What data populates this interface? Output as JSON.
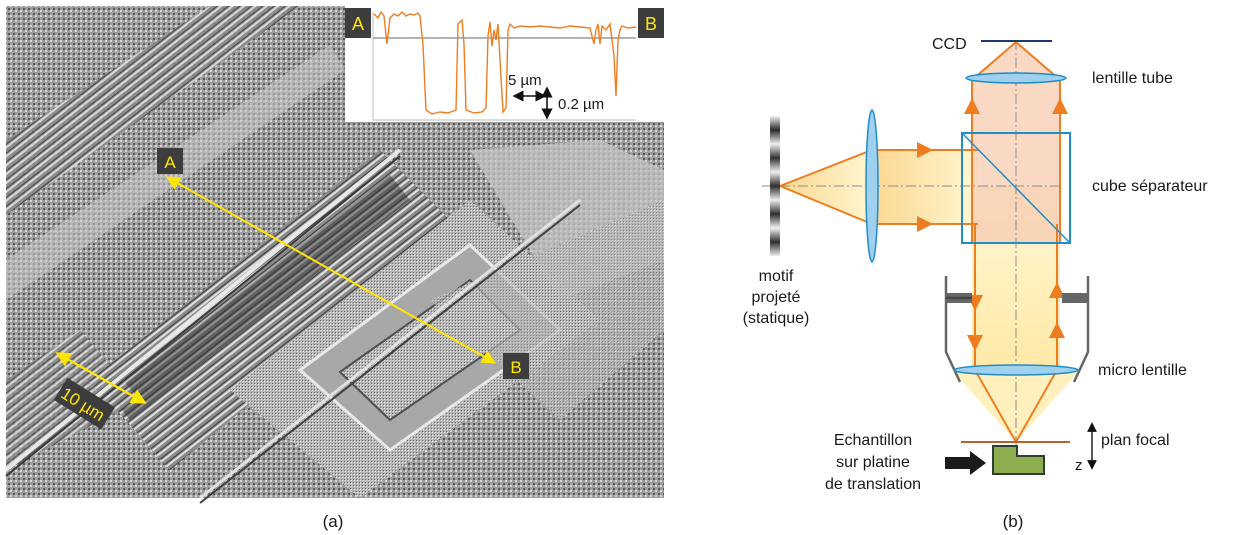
{
  "panel_a": {
    "caption": "(a)",
    "point_a": "A",
    "point_b": "B",
    "scale_bar": "10 µm",
    "inset": {
      "label_left": "A",
      "label_right": "B",
      "scale_x": "5 µm",
      "scale_y": "0.2 µm"
    }
  },
  "panel_b": {
    "caption": "(b)",
    "labels": {
      "ccd": "CCD",
      "tube_lens": "lentille tube",
      "beam_splitter": "cube séparateur",
      "pattern_line1": "motif",
      "pattern_line2": "projeté",
      "pattern_line3": "(statique)",
      "micro_lens": "micro lentille",
      "focal_plane": "plan focal",
      "z_axis": "z",
      "sample_line1": "Echantillon",
      "sample_line2": "sur platine",
      "sample_line3": "de translation"
    }
  },
  "colors": {
    "beam_orange": "#ee7d22",
    "optics_blue": "#1f8dc9",
    "lens_fill": "#9fd0ee",
    "label_yellow": "#ffe600",
    "sample_green": "#8dae4f"
  }
}
